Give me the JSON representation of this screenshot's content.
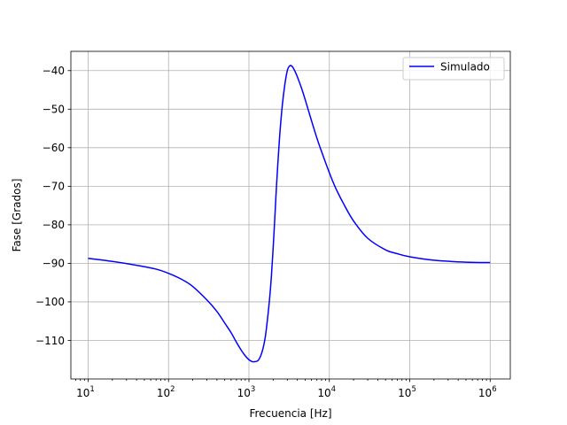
{
  "chart_data": {
    "type": "line",
    "title": "",
    "xlabel": "Frecuencia [Hz]",
    "ylabel": "Fase [Grados]",
    "x_scale": "log",
    "xlim": [
      6.1,
      1780000
    ],
    "ylim": [
      -120,
      -35
    ],
    "grid": true,
    "legend_placement": "upper-right",
    "x_ticks": [
      {
        "value": 10,
        "base": "10",
        "exp": "1"
      },
      {
        "value": 100,
        "base": "10",
        "exp": "2"
      },
      {
        "value": 1000,
        "base": "10",
        "exp": "3"
      },
      {
        "value": 10000,
        "base": "10",
        "exp": "4"
      },
      {
        "value": 100000,
        "base": "10",
        "exp": "5"
      },
      {
        "value": 1000000,
        "base": "10",
        "exp": "6"
      }
    ],
    "y_ticks": [
      {
        "value": -40,
        "label": "−40"
      },
      {
        "value": -50,
        "label": "−50"
      },
      {
        "value": -60,
        "label": "−60"
      },
      {
        "value": -70,
        "label": "−70"
      },
      {
        "value": -80,
        "label": "−80"
      },
      {
        "value": -90,
        "label": "−90"
      },
      {
        "value": -100,
        "label": "−100"
      },
      {
        "value": -110,
        "label": "−110"
      }
    ],
    "series": [
      {
        "name": "Simulado",
        "color": "#0000ff",
        "x": [
          10,
          20,
          40,
          70,
          100,
          150,
          200,
          300,
          400,
          500,
          600,
          700,
          800,
          900,
          1000,
          1100,
          1200,
          1300,
          1400,
          1500,
          1600,
          1700,
          1800,
          1900,
          2000,
          2100,
          2200,
          2400,
          2600,
          2800,
          3000,
          3200,
          3400,
          3600,
          3800,
          4000,
          4500,
          5000,
          6000,
          7000,
          8000,
          10000,
          12000,
          15000,
          20000,
          30000,
          50000,
          70000,
          100000,
          200000,
          500000,
          1000000
        ],
        "y": [
          -88.7,
          -89.5,
          -90.5,
          -91.5,
          -92.6,
          -94.3,
          -96.0,
          -99.5,
          -102.5,
          -105.5,
          -108.0,
          -110.5,
          -112.5,
          -114.0,
          -115.0,
          -115.5,
          -115.5,
          -115.2,
          -114.0,
          -112.0,
          -109.0,
          -104.5,
          -99.5,
          -93.5,
          -86.0,
          -78.0,
          -70.0,
          -57.5,
          -49.0,
          -43.5,
          -40.0,
          -38.8,
          -38.8,
          -39.5,
          -40.5,
          -41.6,
          -44.5,
          -47.5,
          -53.0,
          -57.5,
          -61.0,
          -66.5,
          -70.5,
          -74.5,
          -79.0,
          -83.5,
          -86.5,
          -87.5,
          -88.3,
          -89.2,
          -89.7,
          -89.8
        ]
      }
    ]
  }
}
